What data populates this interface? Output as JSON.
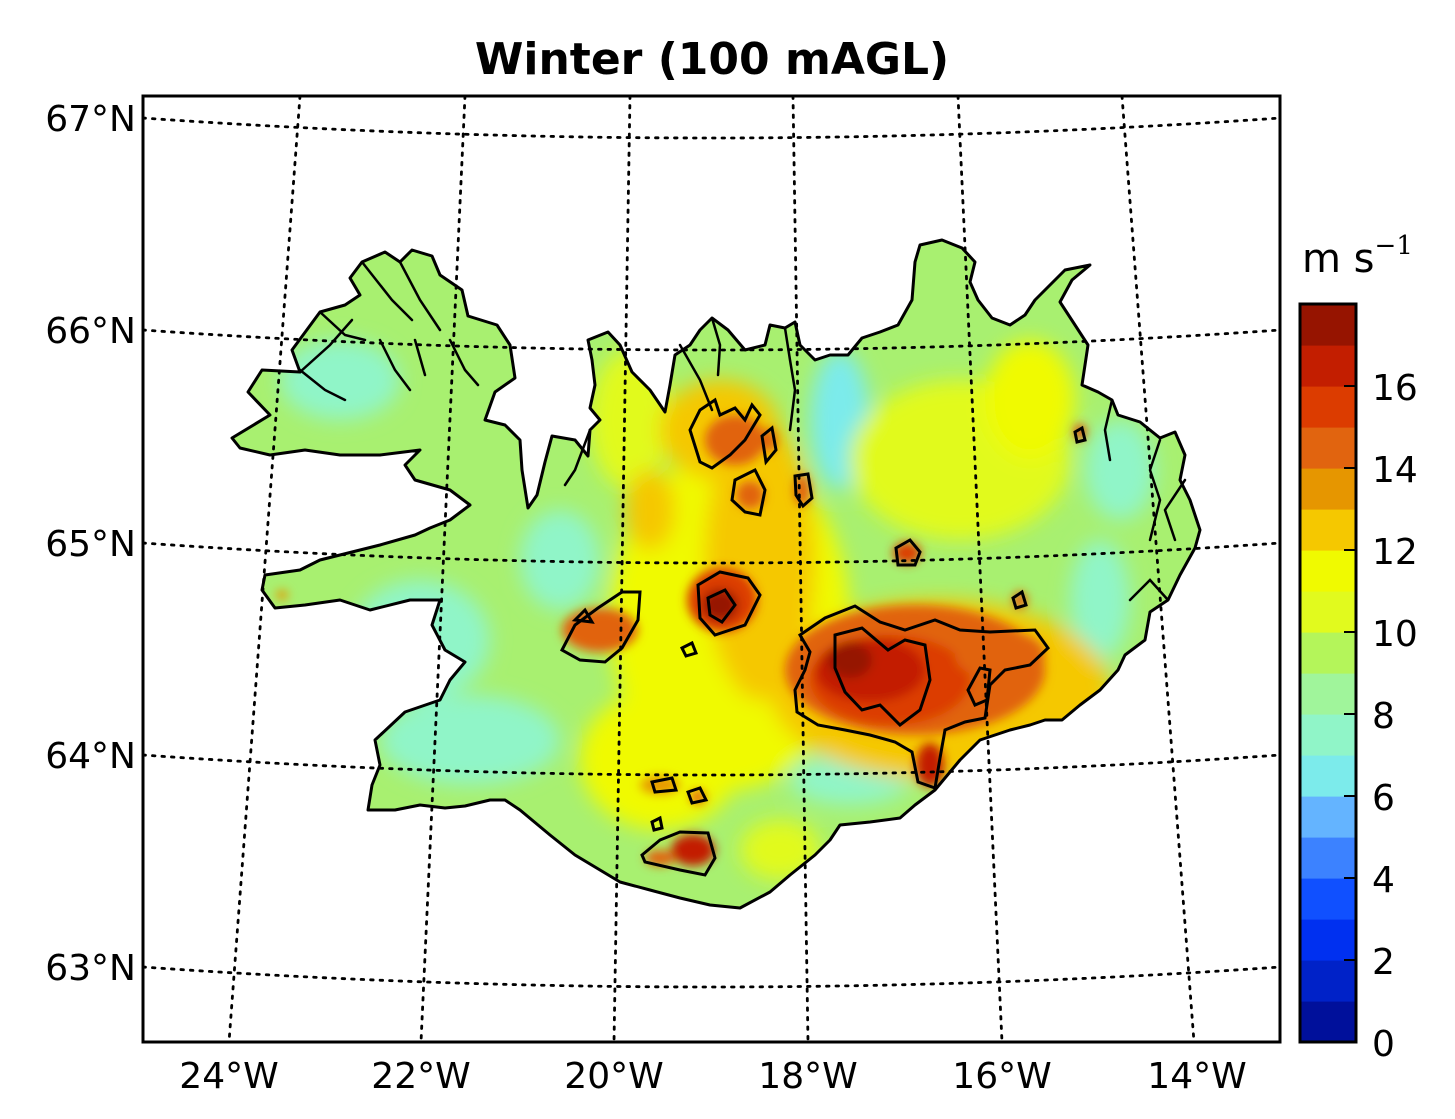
{
  "title": "Winter (100 mAGL)",
  "map": {
    "lat_labels": [
      "67°N",
      "66°N",
      "65°N",
      "64°N",
      "63°N"
    ],
    "lon_labels": [
      "24°W",
      "22°W",
      "20°W",
      "18°W",
      "16°W",
      "14°W"
    ],
    "graticule_style": "dotted"
  },
  "colorbar": {
    "unit_base": "m s",
    "unit_exp": "−1",
    "tick_labels": [
      "0",
      "2",
      "4",
      "6",
      "8",
      "10",
      "12",
      "14",
      "16"
    ],
    "levels": [
      0,
      1,
      2,
      3,
      4,
      5,
      6,
      7,
      8,
      9,
      10,
      11,
      12,
      13,
      14,
      15,
      16,
      17,
      18
    ],
    "colors": [
      "#00109b",
      "#0022c8",
      "#0030f0",
      "#1050ff",
      "#3c82ff",
      "#64b4ff",
      "#7cebeb",
      "#90f5c8",
      "#a0f59b",
      "#b4f55a",
      "#e1fa1e",
      "#f0fa00",
      "#f5c800",
      "#e69600",
      "#e1640f",
      "#dc3c00",
      "#c31e00",
      "#961400"
    ]
  },
  "colors": {
    "land_base": "#a8f070",
    "contour": "#000000",
    "frame": "#000000"
  }
}
